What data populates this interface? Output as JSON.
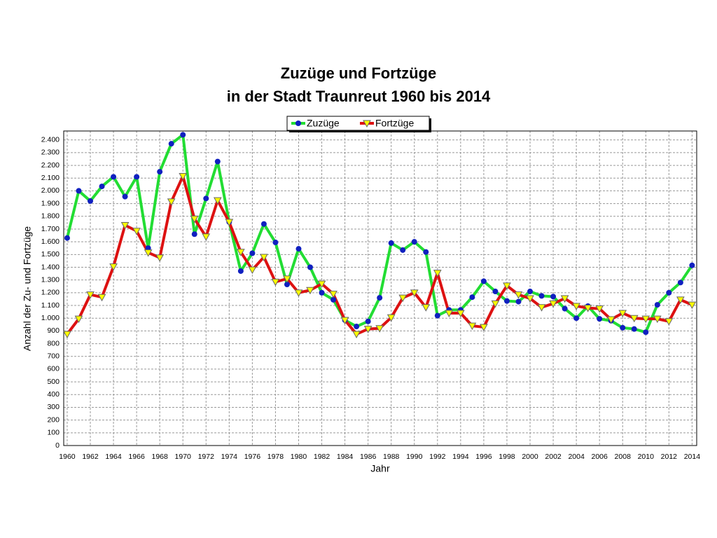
{
  "chart_data": {
    "type": "line",
    "title": "Zuzüge und Fortzüge",
    "subtitle": "in der Stadt Traunreut 1960 bis 2014",
    "x_label": "Jahr",
    "y_label": "Anzahl der Zu- und Fortzüge",
    "x": [
      1960,
      1961,
      1962,
      1963,
      1964,
      1965,
      1966,
      1967,
      1968,
      1969,
      1970,
      1971,
      1972,
      1973,
      1974,
      1975,
      1976,
      1977,
      1978,
      1979,
      1980,
      1981,
      1982,
      1983,
      1984,
      1985,
      1986,
      1987,
      1988,
      1989,
      1990,
      1991,
      1992,
      1993,
      1994,
      1995,
      1996,
      1997,
      1998,
      1999,
      2000,
      2001,
      2002,
      2003,
      2004,
      2005,
      2006,
      2007,
      2008,
      2009,
      2010,
      2011,
      2012,
      2013,
      2014
    ],
    "series": [
      {
        "name": "Zuzüge",
        "color": "#22dd33",
        "marker": "circle",
        "marker_color": "#1020c0",
        "values": [
          1630,
          2000,
          1920,
          2035,
          2110,
          1955,
          2110,
          1550,
          2150,
          2370,
          2440,
          1660,
          1940,
          2230,
          1755,
          1370,
          1510,
          1740,
          1595,
          1265,
          1545,
          1400,
          1200,
          1145,
          985,
          935,
          975,
          1160,
          1590,
          1535,
          1600,
          1520,
          1020,
          1065,
          1065,
          1165,
          1290,
          1210,
          1135,
          1130,
          1210,
          1175,
          1170,
          1075,
          1000,
          1095,
          995,
          980,
          925,
          915,
          890,
          1105,
          1200,
          1280,
          1415
        ]
      },
      {
        "name": "Fortzüge",
        "color": "#dd1111",
        "marker": "triangle-down",
        "marker_color": "#ffff00",
        "values": [
          875,
          995,
          1185,
          1165,
          1405,
          1730,
          1685,
          1515,
          1475,
          1915,
          2115,
          1780,
          1640,
          1925,
          1755,
          1520,
          1380,
          1480,
          1285,
          1310,
          1200,
          1220,
          1270,
          1190,
          985,
          875,
          915,
          920,
          1005,
          1160,
          1200,
          1085,
          1355,
          1040,
          1040,
          940,
          930,
          1115,
          1255,
          1185,
          1155,
          1085,
          1115,
          1155,
          1095,
          1080,
          1075,
          990,
          1040,
          1000,
          995,
          995,
          975,
          1145,
          1105
        ]
      }
    ],
    "xlim": [
      1959.7,
      2014.4
    ],
    "xticks": [
      1960,
      1962,
      1964,
      1966,
      1968,
      1970,
      1972,
      1974,
      1976,
      1978,
      1980,
      1982,
      1984,
      1986,
      1988,
      1990,
      1992,
      1994,
      1996,
      1998,
      2000,
      2002,
      2004,
      2006,
      2008,
      2010,
      2012,
      2014
    ],
    "ylim": [
      0,
      2470
    ],
    "yticks": [
      0,
      100,
      200,
      300,
      400,
      500,
      600,
      700,
      800,
      900,
      {
        "value": 1000,
        "label": "1.000"
      },
      {
        "value": 1100,
        "label": "1.100"
      },
      {
        "value": 1200,
        "label": "1.200"
      },
      {
        "value": 1300,
        "label": "1.300"
      },
      {
        "value": 1400,
        "label": "1.400"
      },
      {
        "value": 1500,
        "label": "1.500"
      },
      {
        "value": 1600,
        "label": "1.600"
      },
      {
        "value": 1700,
        "label": "1.700"
      },
      {
        "value": 1800,
        "label": "1.800"
      },
      {
        "value": 1900,
        "label": "1.900"
      },
      {
        "value": 2000,
        "label": "2.000"
      },
      {
        "value": 2100,
        "label": "2.100"
      },
      {
        "value": 2200,
        "label": "2.200"
      },
      {
        "value": 2300,
        "label": "2.300"
      },
      {
        "value": 2400,
        "label": "2.400"
      }
    ],
    "grid": true,
    "legend": "top"
  }
}
